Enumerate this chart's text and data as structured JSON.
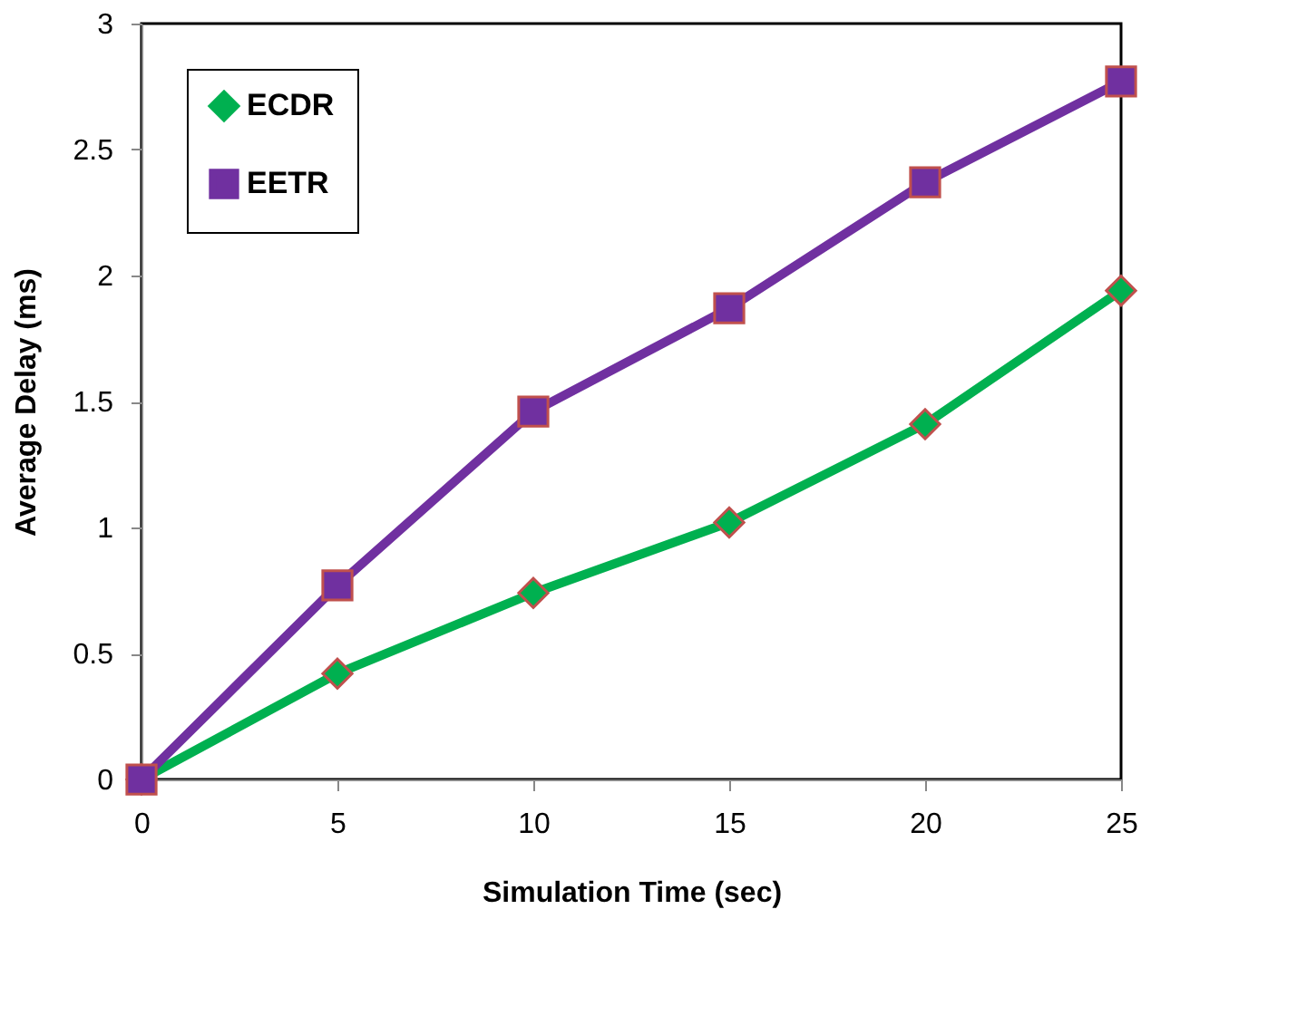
{
  "chart_data": {
    "type": "line",
    "xlabel": "Simulation Time (sec)",
    "ylabel": "Average Delay (ms)",
    "x": [
      0,
      5,
      10,
      15,
      20,
      25
    ],
    "series": [
      {
        "name": "ECDR",
        "color": "#00b050",
        "marker": "diamond",
        "values": [
          0,
          0.42,
          0.74,
          1.02,
          1.41,
          1.94
        ]
      },
      {
        "name": "EETR",
        "color": "#7030a0",
        "marker": "square",
        "values": [
          0,
          0.77,
          1.46,
          1.87,
          2.37,
          2.77
        ]
      }
    ],
    "xlim": [
      0,
      25
    ],
    "xticks": [
      0,
      5,
      10,
      15,
      20,
      25
    ],
    "ylim": [
      0,
      3
    ],
    "yticks": [
      0,
      0.5,
      1,
      1.5,
      2,
      2.5,
      3
    ],
    "grid": false,
    "legend": "top left",
    "line_style": "solid"
  }
}
